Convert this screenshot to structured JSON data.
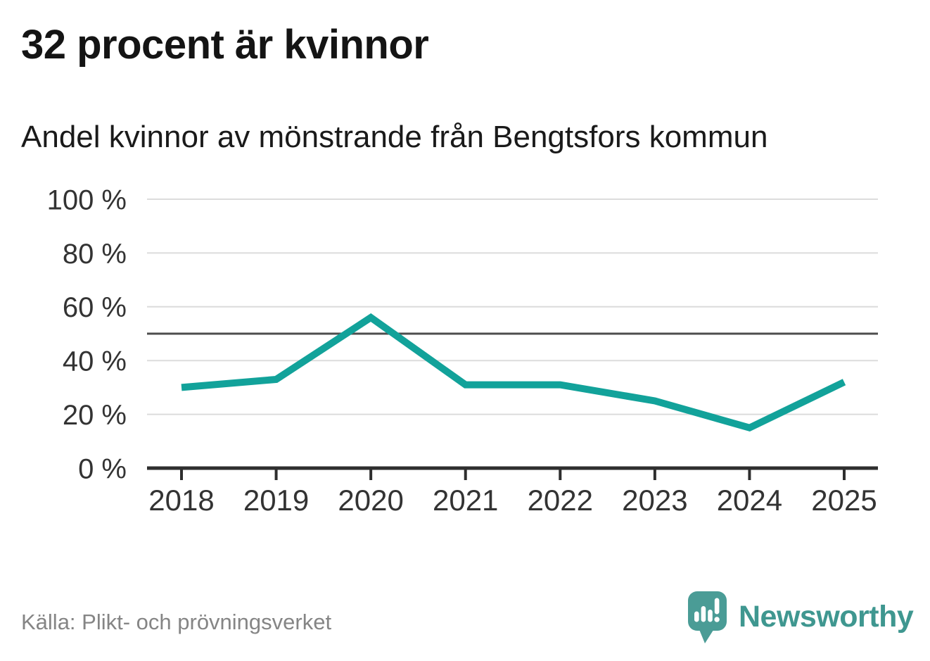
{
  "header": {
    "title": "32 procent är kvinnor",
    "subtitle": "Andel kvinnor av mönstrande från Bengtsfors kommun"
  },
  "footer": {
    "source": "Källa: Plikt- och prövningsverket",
    "brand": "Newsworthy"
  },
  "colors": {
    "line": "#12a29a",
    "grid": "#dcdcdc",
    "reference_line": "#4d4d4d",
    "axis": "#2e2e2e",
    "tick_label": "#333333",
    "title": "#141414",
    "source_text": "#858585",
    "brand": "#3f9790",
    "logo_bg": "#4a9c96"
  },
  "chart_data": {
    "type": "line",
    "title": "32 procent är kvinnor",
    "subtitle": "Andel kvinnor av mönstrande från Bengtsfors kommun",
    "source": "Källa: Plikt- och prövningsverket",
    "x": [
      "2018",
      "2019",
      "2020",
      "2021",
      "2022",
      "2023",
      "2024",
      "2025"
    ],
    "series": [
      {
        "name": "Andel kvinnor av mönstrande",
        "values": [
          30,
          33,
          56,
          31,
          31,
          25,
          15,
          32
        ]
      }
    ],
    "ylim": [
      0,
      100
    ],
    "yticks": [
      0,
      20,
      40,
      60,
      80,
      100
    ],
    "ytick_suffix": " %",
    "reference_line": 50,
    "grid": "horizontal",
    "legend": "none"
  }
}
